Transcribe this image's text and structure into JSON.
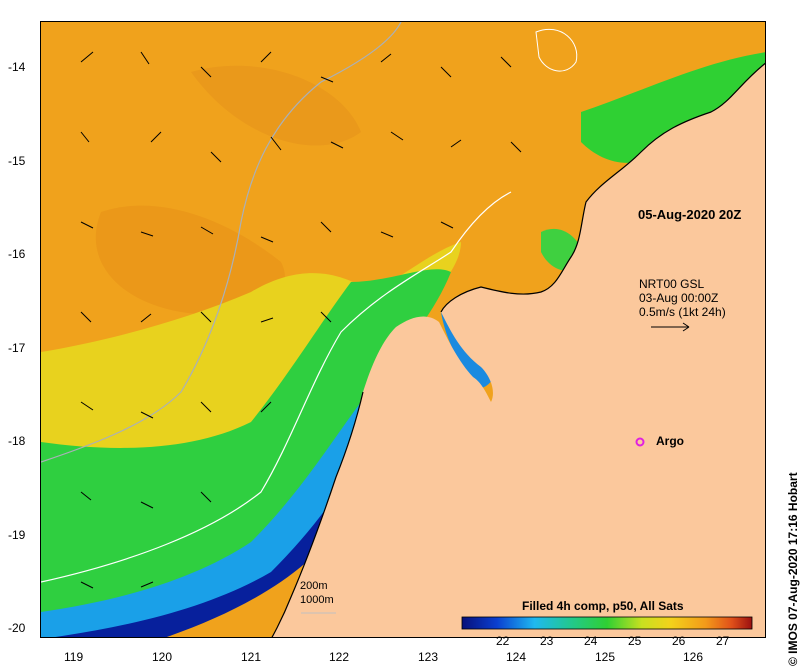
{
  "map": {
    "valid_time": "05-Aug-2020 20Z",
    "current_source": "NRT00 GSL",
    "current_date": "03-Aug 00:00Z",
    "current_scale": "0.5m/s (1kt 24h)",
    "argo_label": "Argo",
    "contour_200": "200m",
    "contour_1000": "1000m",
    "colorbar_title": "Filled 4h comp, p50, All Sats",
    "colorbar_ticks": [
      "22",
      "23",
      "24",
      "25",
      "26",
      "27"
    ],
    "credit": "© IMOS 07-Aug-2020 17:16 Hobart",
    "lon_ticks": [
      "119",
      "120",
      "121",
      "122",
      "123",
      "124",
      "125",
      "126"
    ],
    "lat_ticks": [
      "-14",
      "-15",
      "-16",
      "-17",
      "-18",
      "-19",
      "-20"
    ],
    "colors": {
      "land": "#fbc89c",
      "warm": "#f2a21a",
      "mid": "#e9d21c",
      "green": "#2fd033",
      "cool": "#1aa3e8",
      "cold": "#071f9b",
      "argo": "#e020e0"
    }
  }
}
